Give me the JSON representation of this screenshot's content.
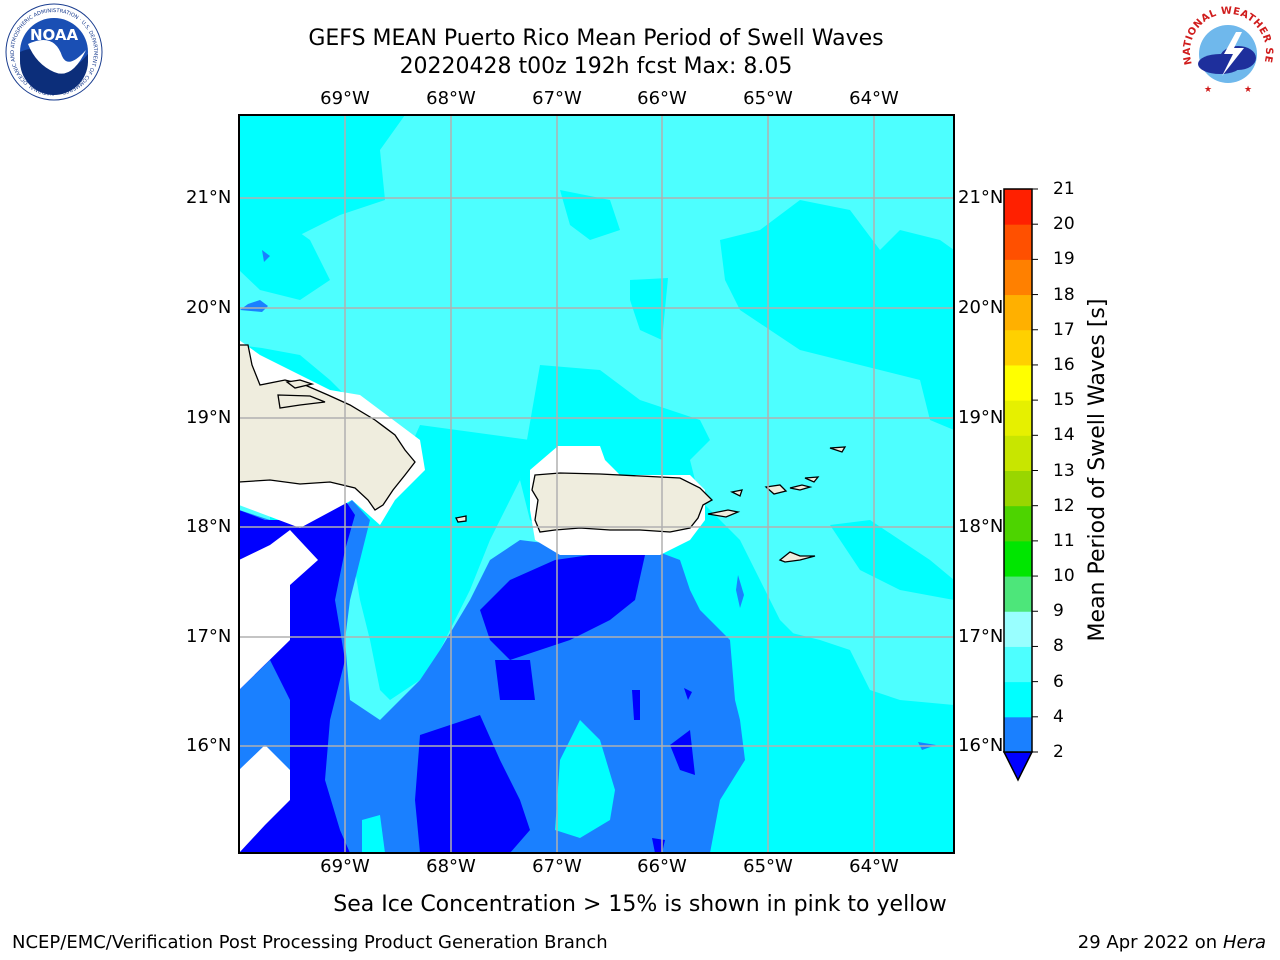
{
  "title": {
    "line1": "GEFS MEAN Puerto Rico Mean Period of Swell Waves",
    "line2": "20220428 t00z 192h fcst   Max: 8.05"
  },
  "map": {
    "longitude_labels": [
      "69°W",
      "68°W",
      "67°W",
      "66°W",
      "65°W",
      "64°W"
    ],
    "latitude_labels": [
      "21°N",
      "20°N",
      "19°N",
      "18°N",
      "17°N",
      "16°N"
    ],
    "land_color": "#efedde",
    "grid_color": "#b0b0b0"
  },
  "colorbar": {
    "title": "Mean Period of Swell Waves [s]",
    "tick_labels": [
      "2",
      "4",
      "6",
      "8",
      "9",
      "10",
      "11",
      "12",
      "13",
      "14",
      "15",
      "16",
      "17",
      "18",
      "19",
      "20",
      "21"
    ],
    "colors": [
      "#0000ff",
      "#1a80ff",
      "#00ffff",
      "#4dffff",
      "#99ffff",
      "#4de67a",
      "#00e600",
      "#4dd400",
      "#99d600",
      "#c8e600",
      "#e6f000",
      "#ffff00",
      "#ffd000",
      "#ffb000",
      "#ff8000",
      "#ff5000",
      "#ff2000",
      "#ff0000"
    ]
  },
  "note": "Sea Ice Concentration > 15% is shown in pink to yellow",
  "footer": {
    "left": "NCEP/EMC/Verification Post Processing Product Generation Branch",
    "date": "29 Apr 2022 on ",
    "machine": "Hera"
  },
  "logos": {
    "noaa_text": "NOAA",
    "noaa_ring": "NATIONAL OCEANIC AND ATMOSPHERIC ADMINISTRATION · U.S. DEPARTMENT OF COMMERCE",
    "nws_ring": "NATIONAL WEATHER SERVICE"
  }
}
